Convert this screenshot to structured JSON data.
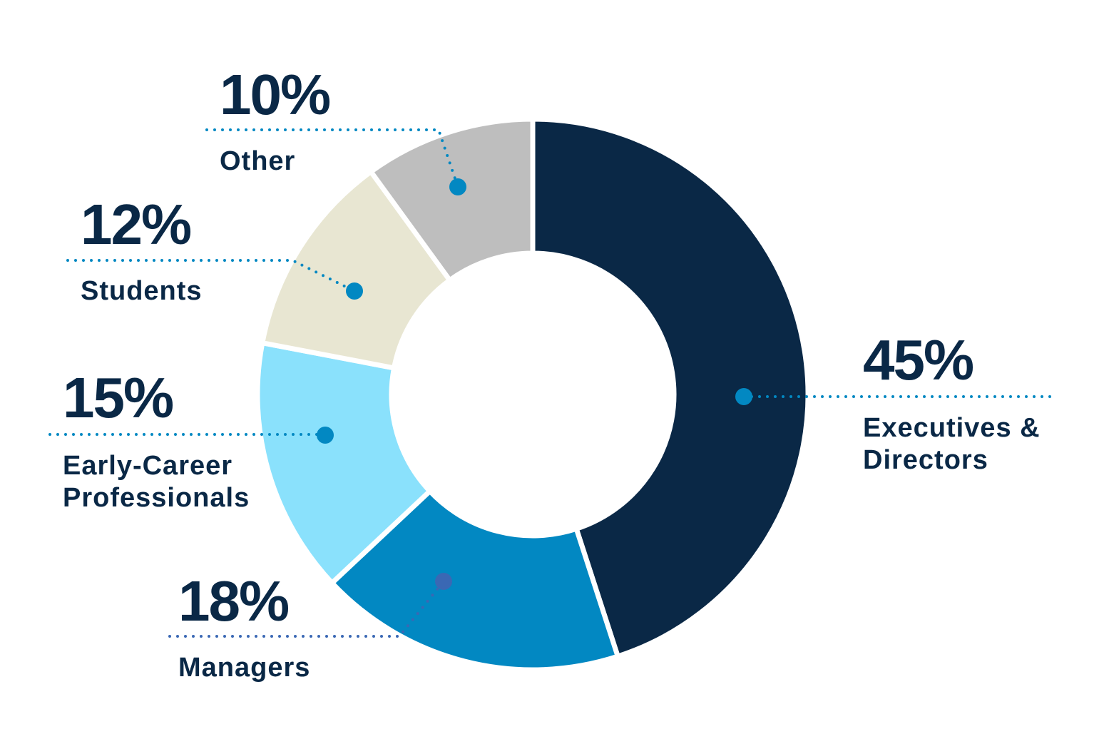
{
  "chart_data": {
    "type": "pie",
    "variant": "donut",
    "start": "12 o'clock, clockwise",
    "slices": [
      {
        "label": [
          "Executives &",
          "Directors"
        ],
        "value": 45,
        "value_label": "45%",
        "color": "#0a2846"
      },
      {
        "label": [
          "Managers"
        ],
        "value": 18,
        "value_label": "18%",
        "color": "#0288c2"
      },
      {
        "label": [
          "Early-Career",
          "Professionals"
        ],
        "value": 15,
        "value_label": "15%",
        "color": "#8ae1fc"
      },
      {
        "label": [
          "Students"
        ],
        "value": 12,
        "value_label": "12%",
        "color": "#e8e6d2"
      },
      {
        "label": [
          "Other"
        ],
        "value": 10,
        "value_label": "10%",
        "color": "#bebebe"
      }
    ],
    "leader_color": "#0288c2",
    "managers_leader_color": "#3a68b4",
    "text_color": "#0a2846"
  }
}
